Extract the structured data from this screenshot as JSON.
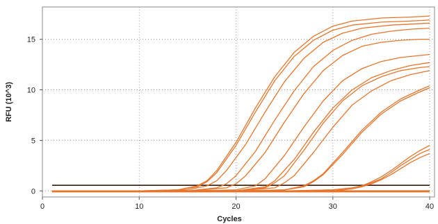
{
  "chart_data": {
    "type": "line",
    "title": "",
    "xlabel": "Cycles",
    "ylabel": "RFU (10^3)",
    "xlim": [
      0,
      40.5
    ],
    "ylim": [
      -0.6,
      18.2
    ],
    "xticks": [
      0,
      10,
      20,
      30,
      40
    ],
    "yticks": [
      0,
      5,
      10,
      15
    ],
    "grid": "dotted",
    "legend": "none",
    "line_color": "#e8742a",
    "baseline_color": "#3a1a05",
    "series": [
      {
        "x": [
          1,
          5,
          10,
          14,
          16,
          17,
          18,
          20,
          22,
          24,
          26,
          28,
          30,
          32,
          35,
          38,
          40
        ],
        "y": [
          0,
          0,
          0,
          0.1,
          0.5,
          1.0,
          2.0,
          4.8,
          8.2,
          11.3,
          13.7,
          15.3,
          16.3,
          16.8,
          17.1,
          17.2,
          17.3
        ]
      },
      {
        "x": [
          1,
          5,
          10,
          14,
          16,
          17,
          18,
          20,
          22,
          24,
          26,
          28,
          30,
          32,
          35,
          38,
          40
        ],
        "y": [
          0,
          0,
          0,
          0.1,
          0.4,
          0.9,
          1.8,
          4.5,
          7.8,
          10.9,
          13.3,
          14.9,
          15.9,
          16.4,
          16.7,
          16.8,
          16.9
        ]
      },
      {
        "x": [
          1,
          5,
          10,
          15,
          17,
          18,
          19,
          21,
          23,
          25,
          27,
          29,
          31,
          33,
          36,
          38,
          40
        ],
        "y": [
          0,
          0,
          0,
          0.1,
          0.5,
          1.0,
          2.0,
          4.6,
          7.8,
          10.8,
          13.1,
          14.7,
          15.6,
          16.1,
          16.4,
          16.5,
          16.6
        ]
      },
      {
        "x": [
          1,
          5,
          10,
          15,
          18,
          19,
          20,
          22,
          24,
          26,
          28,
          30,
          32,
          34,
          36,
          38,
          40
        ],
        "y": [
          0,
          0,
          0,
          0,
          0.3,
          0.7,
          1.5,
          3.9,
          7.0,
          9.9,
          12.3,
          13.9,
          14.9,
          15.5,
          15.8,
          16.0,
          16.1
        ]
      },
      {
        "x": [
          1,
          5,
          10,
          15,
          19,
          20,
          21,
          23,
          25,
          27,
          29,
          31,
          33,
          35,
          37,
          39,
          40
        ],
        "y": [
          0,
          0,
          0,
          0,
          0.3,
          0.7,
          1.5,
          3.8,
          6.8,
          9.6,
          11.9,
          13.4,
          14.3,
          14.7,
          14.9,
          15.0,
          15.0
        ]
      },
      {
        "x": [
          1,
          5,
          10,
          15,
          20,
          22,
          23,
          25,
          27,
          29,
          31,
          33,
          35,
          37,
          39,
          40
        ],
        "y": [
          0,
          0,
          0,
          0,
          0.1,
          0.5,
          1.2,
          3.5,
          6.3,
          8.9,
          10.9,
          12.1,
          12.8,
          13.2,
          13.4,
          13.5
        ]
      },
      {
        "x": [
          1,
          5,
          10,
          15,
          20,
          23,
          24,
          26,
          28,
          30,
          32,
          34,
          36,
          38,
          40
        ],
        "y": [
          0,
          0,
          0,
          0,
          0,
          0.4,
          1.0,
          3.1,
          5.8,
          8.2,
          10.0,
          11.2,
          11.9,
          12.4,
          12.7
        ]
      },
      {
        "x": [
          1,
          5,
          10,
          15,
          20,
          23,
          24,
          25,
          27,
          29,
          31,
          33,
          35,
          37,
          39,
          40
        ],
        "y": [
          0,
          0,
          0,
          0,
          0,
          0.3,
          0.8,
          1.5,
          4.0,
          6.7,
          8.9,
          10.4,
          11.3,
          11.9,
          12.2,
          12.3
        ]
      },
      {
        "x": [
          1,
          5,
          10,
          15,
          20,
          24,
          25,
          26,
          28,
          30,
          32,
          34,
          36,
          38,
          40
        ],
        "y": [
          0,
          0,
          0,
          0,
          0,
          0.3,
          0.8,
          1.5,
          3.8,
          6.3,
          8.5,
          9.9,
          10.9,
          11.5,
          11.9
        ]
      },
      {
        "x": [
          1,
          5,
          10,
          15,
          20,
          25,
          27,
          28,
          29,
          31,
          33,
          35,
          37,
          39,
          40
        ],
        "y": [
          0,
          0,
          0,
          0,
          0,
          0.1,
          0.5,
          1.0,
          1.7,
          3.8,
          6.0,
          7.8,
          9.1,
          10.0,
          10.4
        ]
      },
      {
        "x": [
          1,
          5,
          10,
          15,
          20,
          25,
          27,
          28,
          29,
          31,
          33,
          35,
          37,
          39,
          40
        ],
        "y": [
          0,
          0,
          0,
          0,
          0,
          0.1,
          0.4,
          0.9,
          1.6,
          3.6,
          5.8,
          7.6,
          8.9,
          9.8,
          10.2
        ]
      },
      {
        "x": [
          1,
          5,
          10,
          15,
          20,
          25,
          30,
          32,
          33,
          34,
          35,
          36,
          37,
          38,
          39,
          40
        ],
        "y": [
          0,
          0,
          0,
          0,
          0,
          0,
          0.1,
          0.3,
          0.5,
          0.9,
          1.4,
          2.0,
          2.7,
          3.4,
          4.0,
          4.5
        ]
      },
      {
        "x": [
          1,
          5,
          10,
          15,
          20,
          25,
          30,
          32,
          33,
          34,
          35,
          36,
          37,
          38,
          39,
          40
        ],
        "y": [
          0,
          0,
          0,
          0,
          0,
          0,
          0.1,
          0.3,
          0.5,
          0.8,
          1.2,
          1.8,
          2.5,
          3.1,
          3.7,
          4.1
        ]
      },
      {
        "x": [
          1,
          5,
          10,
          15,
          20,
          25,
          30,
          32,
          33,
          34,
          35,
          36,
          37,
          38,
          39,
          40
        ],
        "y": [
          0,
          0,
          0,
          0,
          0,
          0,
          0,
          0.2,
          0.4,
          0.7,
          1.1,
          1.6,
          2.2,
          2.8,
          3.3,
          3.7
        ]
      },
      {
        "x": [
          1,
          5,
          10,
          15,
          20,
          25,
          30,
          35,
          40
        ],
        "y": [
          0,
          0,
          0,
          0,
          0,
          0,
          0,
          0,
          0
        ]
      },
      {
        "x": [
          1,
          5,
          10,
          15,
          20,
          25,
          30,
          35,
          40
        ],
        "y": [
          -0.1,
          -0.1,
          -0.1,
          -0.1,
          -0.1,
          -0.1,
          -0.1,
          -0.1,
          -0.1
        ]
      }
    ],
    "baselines": [
      {
        "x": [
          1,
          40
        ],
        "y": [
          0.55,
          0.55
        ]
      },
      {
        "x": [
          1,
          40
        ],
        "y": [
          0.0,
          0.0
        ]
      }
    ]
  }
}
